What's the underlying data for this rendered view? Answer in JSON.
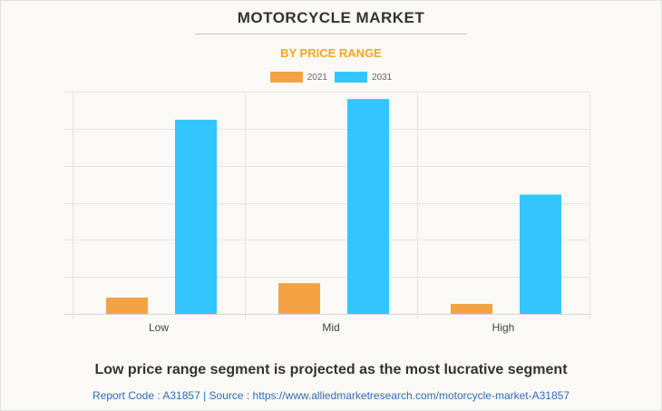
{
  "header": {
    "title": "MOTORCYCLE MARKET",
    "subtitle": "BY PRICE RANGE"
  },
  "footer": {
    "headline": "Low price range segment is projected as the most lucrative segment",
    "source": "Report Code : A31857  |  Source : https://www.alliedmarketresearch.com/motorcycle-market-A31857"
  },
  "chart_data": {
    "type": "bar",
    "title": "MOTORCYCLE MARKET",
    "subtitle": "BY PRICE RANGE",
    "xlabel": "",
    "ylabel": "",
    "categories": [
      "Low",
      "Mid",
      "High"
    ],
    "series": [
      {
        "name": "2021",
        "color": "#f2a444",
        "values": [
          0.44,
          0.83,
          0.27
        ]
      },
      {
        "name": "2031",
        "color": "#33c5fd",
        "values": [
          5.24,
          5.8,
          3.22
        ]
      }
    ],
    "ylim": [
      0,
      6
    ],
    "y_ticks_labeled": false,
    "grid": true,
    "legend": "top-center",
    "note": "Y-axis has no value labels; values are relative to the gridline units (6 gridline intervals)."
  }
}
